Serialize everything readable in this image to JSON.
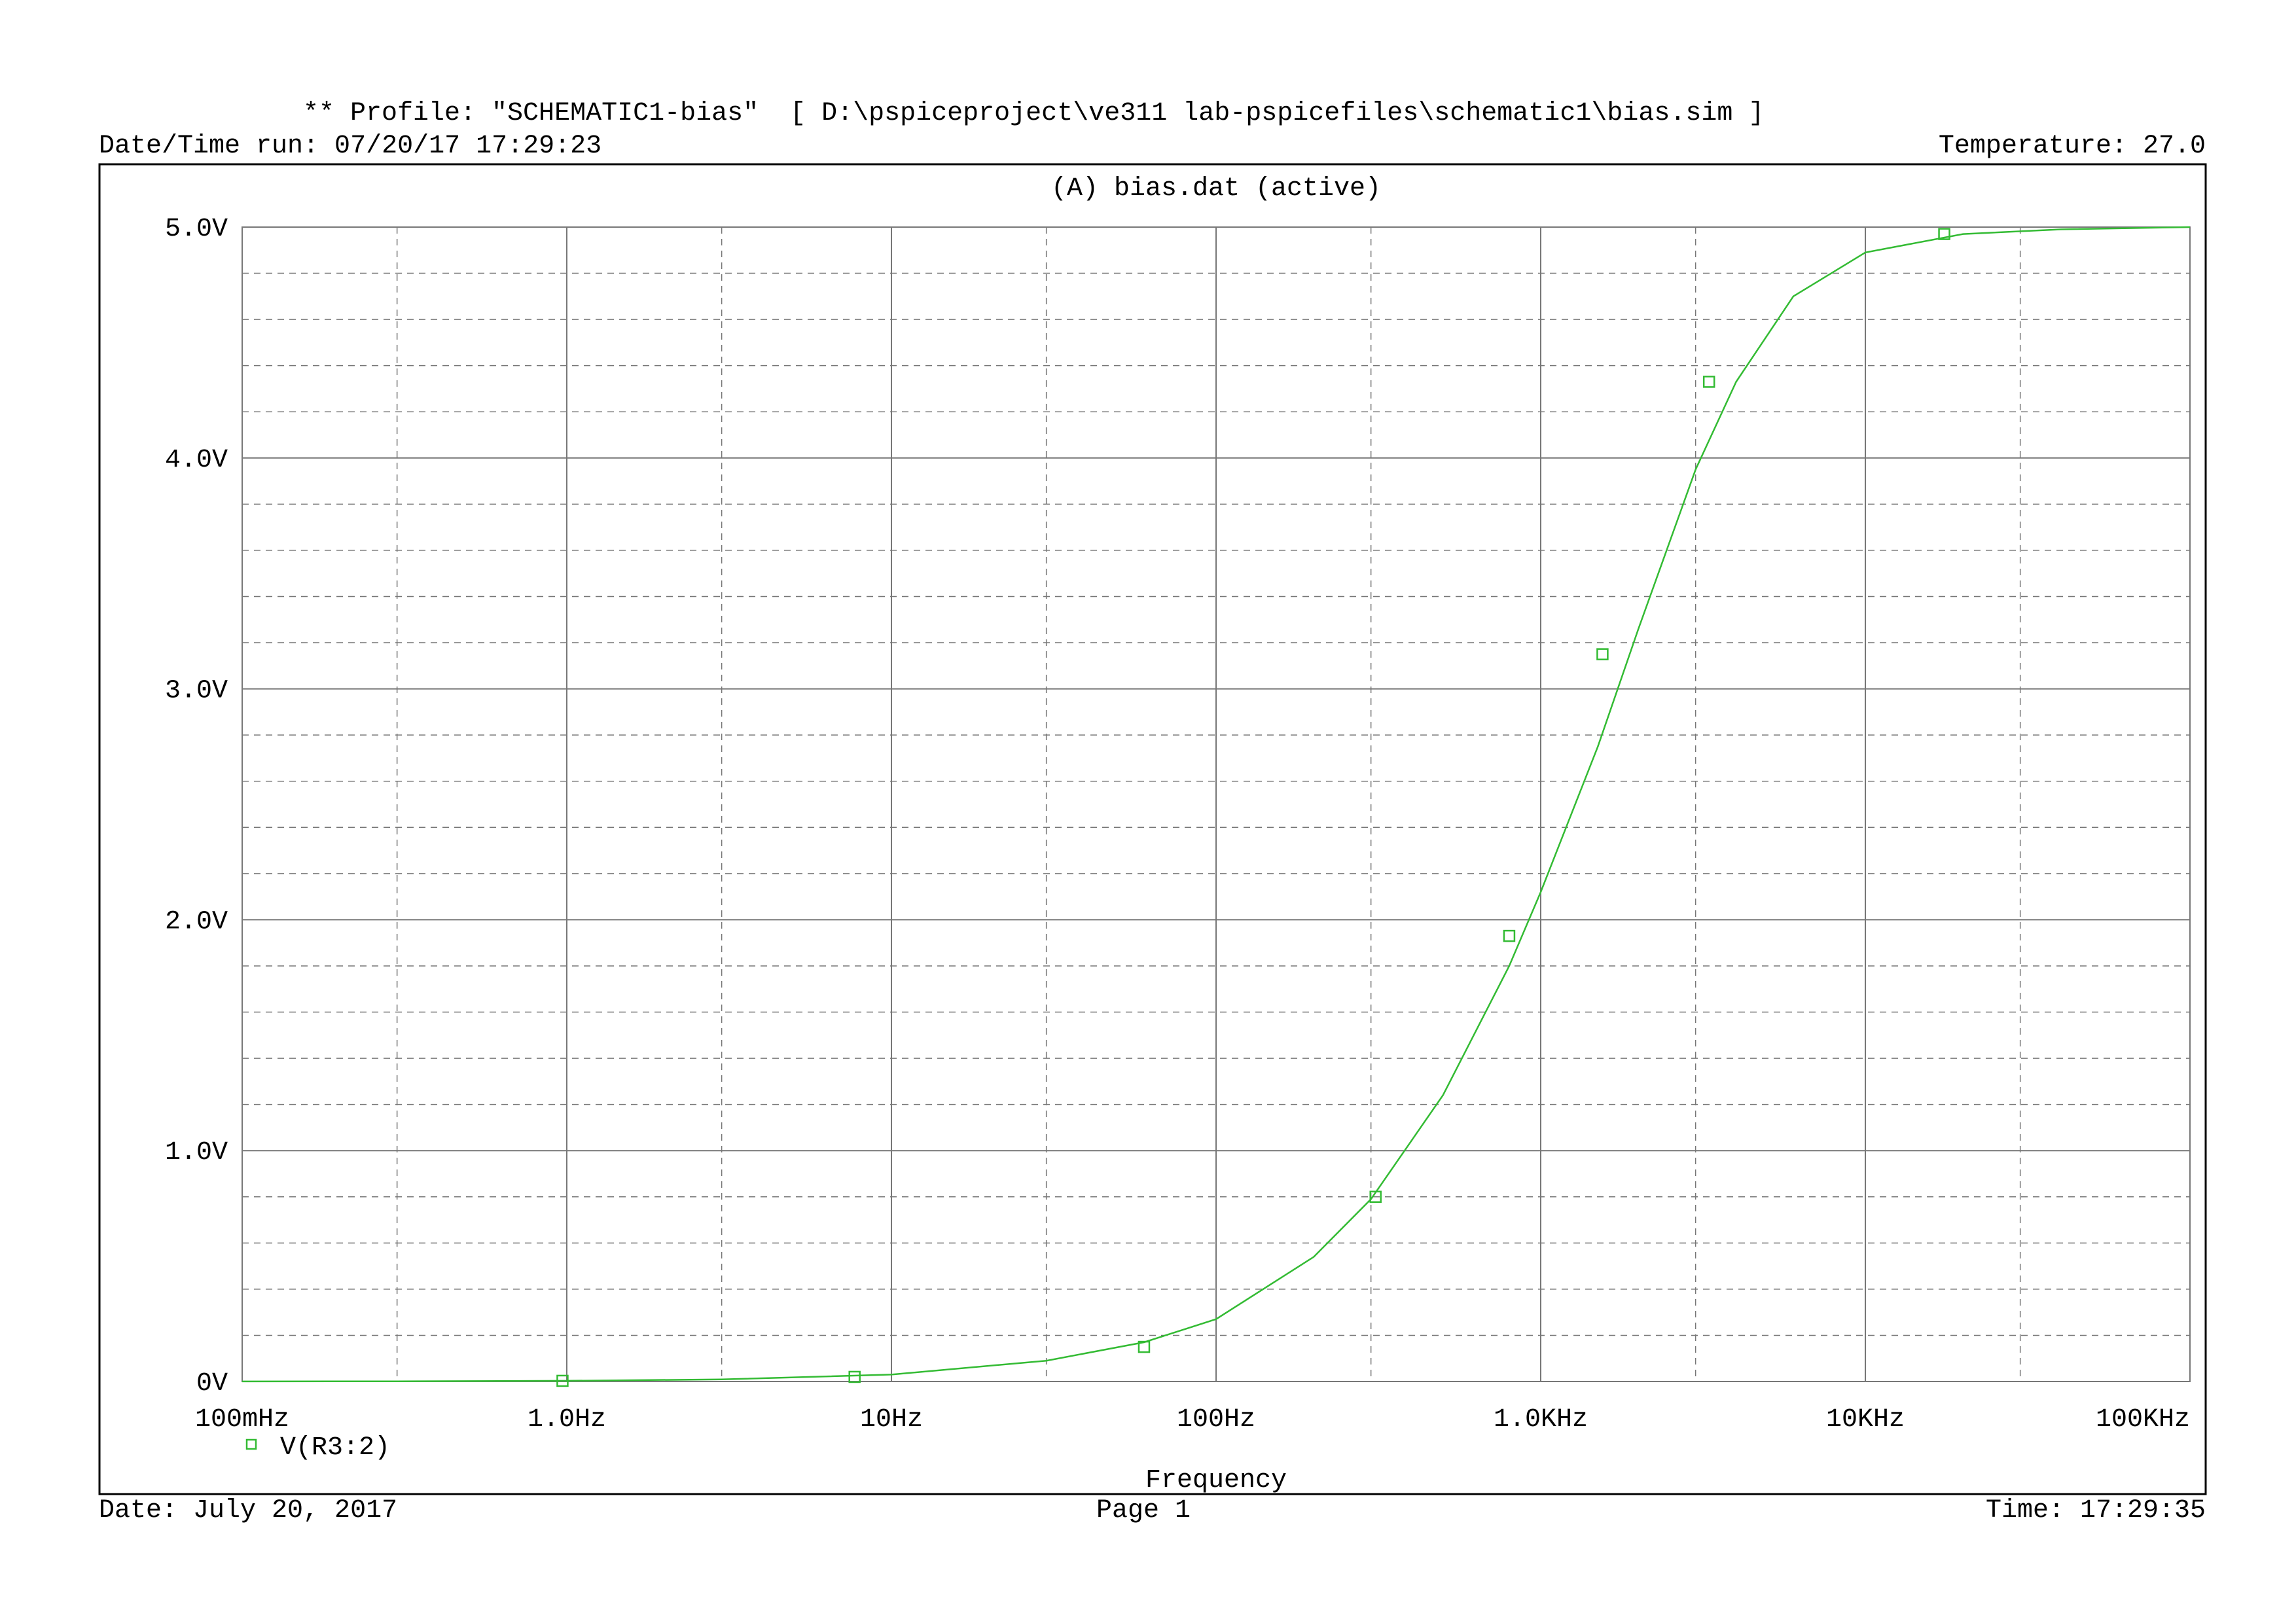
{
  "header": {
    "profile_line": "** Profile: \"SCHEMATIC1-bias\"  [ D:\\pspiceproject\\ve311 lab-pspicefiles\\schematic1\\bias.sim ]",
    "datetime_run": "Date/Time run: 07/20/17 17:29:23",
    "temperature": "Temperature: 27.0"
  },
  "footer": {
    "date": "Date: July 20, 2017",
    "page": "Page 1",
    "time": "Time: 17:29:35"
  },
  "colors": {
    "trace": "#33bb33",
    "grid": "#777777",
    "frame": "#000000"
  },
  "chart_data": {
    "type": "line",
    "title": "(A) bias.dat (active)",
    "xlabel": "Frequency",
    "ylabel": "",
    "x_scale": "log",
    "xlim": [
      0.1,
      100000
    ],
    "ylim": [
      0,
      5
    ],
    "x_tick_labels": [
      "100mHz",
      "1.0Hz",
      "10Hz",
      "100Hz",
      "1.0KHz",
      "10KHz",
      "100KHz"
    ],
    "x_tick_values": [
      0.1,
      1,
      10,
      100,
      1000,
      10000,
      100000
    ],
    "y_tick_labels": [
      "0V",
      "1.0V",
      "2.0V",
      "3.0V",
      "4.0V",
      "5.0V"
    ],
    "y_tick_values": [
      0,
      1,
      2,
      3,
      4,
      5
    ],
    "grid": true,
    "legend_position": "bottom-left",
    "series": [
      {
        "name": "V(R3:2)",
        "marker": "square",
        "x": [
          0.1,
          0.3,
          1,
          3,
          10,
          30,
          60,
          100,
          200,
          300,
          500,
          800,
          1000,
          1500,
          2000,
          3000,
          4000,
          6000,
          10000,
          20000,
          40000,
          100000
        ],
        "y": [
          0.0003,
          0.0009,
          0.003,
          0.009,
          0.03,
          0.09,
          0.17,
          0.27,
          0.54,
          0.79,
          1.24,
          1.8,
          2.12,
          2.75,
          3.26,
          3.95,
          4.33,
          4.7,
          4.89,
          4.97,
          4.99,
          5.0
        ],
        "marker_x": [
          0.97,
          7.7,
          60,
          310,
          800,
          1550,
          3300,
          17500
        ],
        "marker_y": [
          0.003,
          0.02,
          0.15,
          0.8,
          1.93,
          3.15,
          4.33,
          4.97
        ]
      }
    ]
  }
}
